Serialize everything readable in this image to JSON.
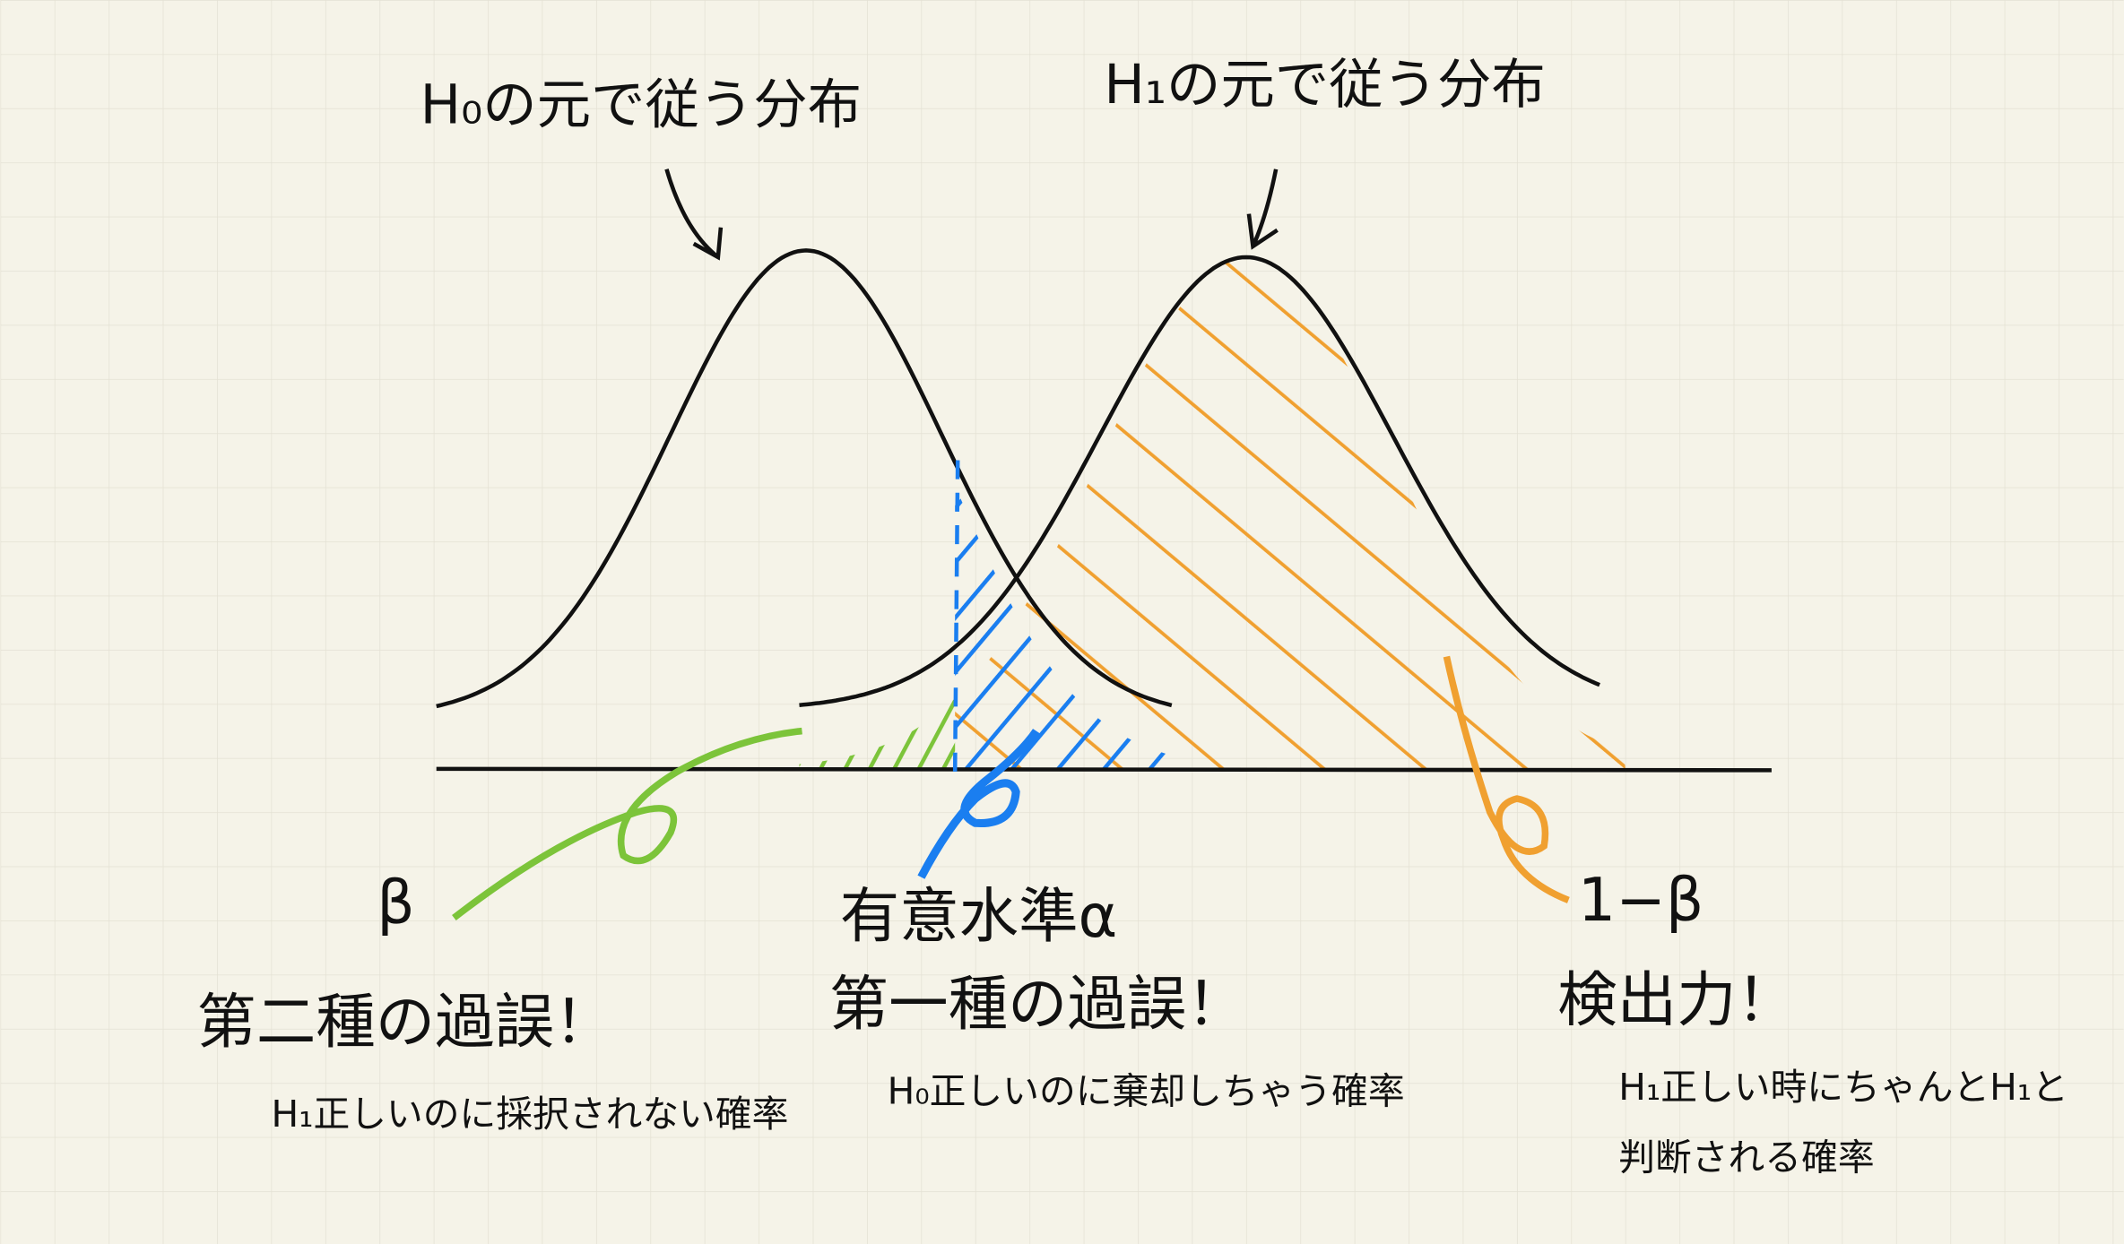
{
  "labels": {
    "h0_title": "H₀の元で従う分布",
    "h1_title": "H₁の元で従う分布",
    "beta": "β",
    "type2_title": "第二種の過誤！",
    "type2_desc": "H₁正しいのに採択されない確率",
    "alpha": "有意水準α",
    "type1_title": "第一種の過誤！",
    "type1_desc": "H₀正しいのに棄却しちゃう確率",
    "one_minus_beta": "1−β",
    "power_title": "検出力！",
    "power_desc": [
      "H₁正しい時にちゃんとH₁と",
      "判断される確率"
    ]
  }
}
